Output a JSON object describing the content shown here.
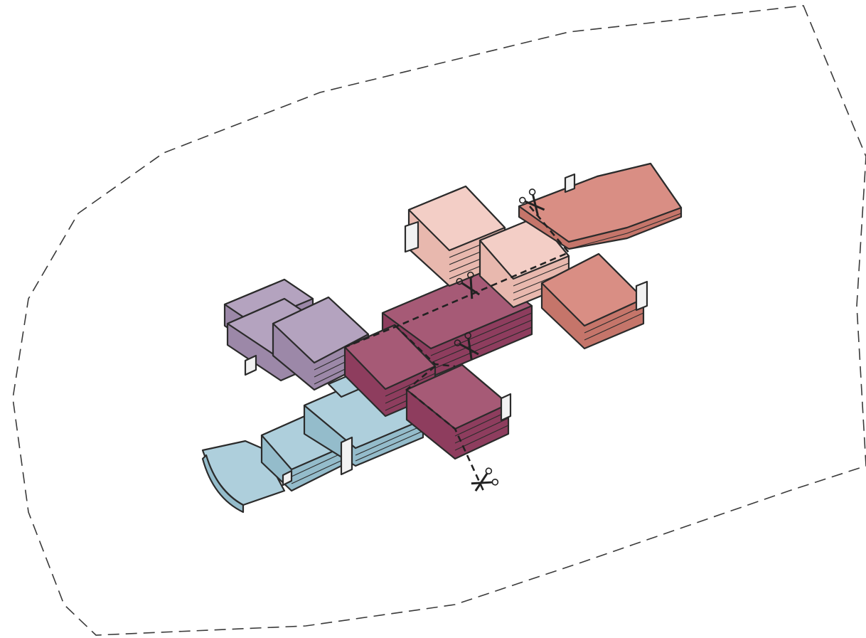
{
  "diagram": {
    "colors": {
      "background": "#ffffff",
      "boundary": "#3a3a3a",
      "purple_top": "#b4a3bf",
      "purple_side": "#9c88a8",
      "magenta_top": "#a65a76",
      "magenta_side": "#8e3d5e",
      "blue_top": "#aecfdc",
      "blue_side": "#94bccb",
      "pink_top": "#f3cec6",
      "pink_side": "#e8b8ae",
      "coral_top": "#d98e84",
      "coral_side": "#c5756a",
      "core_white": "#f2f2f2",
      "core_shadow": "#c9c9c9"
    },
    "icons": [
      "scissors-icon",
      "scissors-icon",
      "scissors-icon",
      "scissors-icon"
    ]
  }
}
